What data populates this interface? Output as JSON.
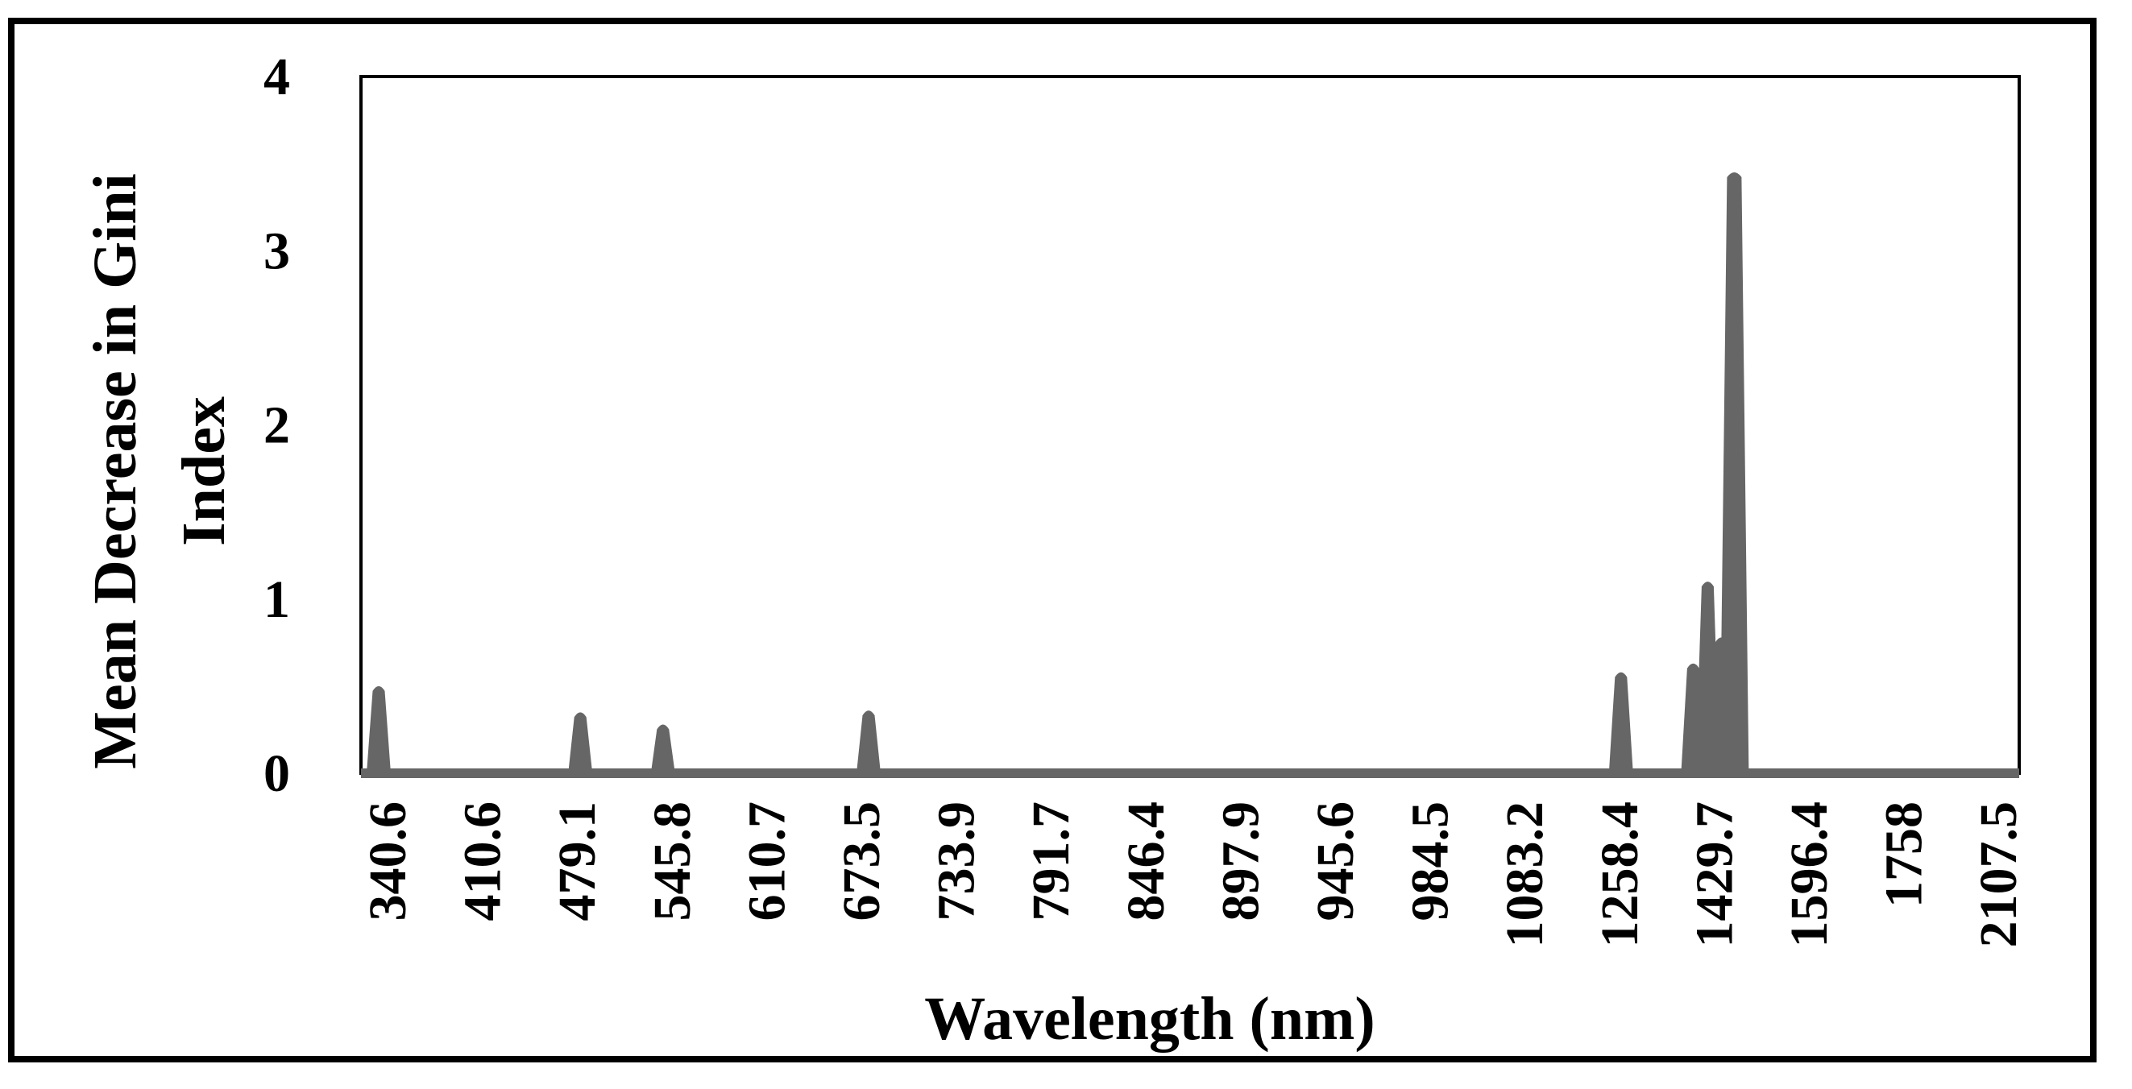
{
  "chart_data": {
    "type": "area",
    "title": "",
    "xlabel": "Wavelength (nm)",
    "ylabel_lines": [
      "Mean Decrease in Gini",
      "Index"
    ],
    "ylim": [
      0,
      4
    ],
    "yticks": [
      "0",
      "1",
      "2",
      "3",
      "4"
    ],
    "xticks": [
      "340.6",
      "410.6",
      "479.1",
      "545.8",
      "610.7",
      "673.5",
      "733.9",
      "791.7",
      "846.4",
      "897.9",
      "945.6",
      "984.5",
      "1083.2",
      "1258.4",
      "1429.7",
      "1596.4",
      "1758",
      "2107.5"
    ],
    "grid": false,
    "legend": "none",
    "series_color": "#666666",
    "series": [
      {
        "peaks": [
          {
            "near_label": "340.6",
            "value": 0.5
          },
          {
            "near_label": "479.1",
            "value": 0.35
          },
          {
            "near_label": "545.8",
            "value": 0.28
          },
          {
            "near_label": "673.5",
            "value": 0.36
          },
          {
            "near_label": "1258.4",
            "value": 0.58
          },
          {
            "near_label": "1429.7",
            "value": 0.63
          },
          {
            "near_label": "1429.7",
            "value": 1.1
          },
          {
            "near_label": "1429.7",
            "value": 0.78
          },
          {
            "near_label": "1429.7",
            "value": 3.45
          }
        ]
      }
    ]
  }
}
